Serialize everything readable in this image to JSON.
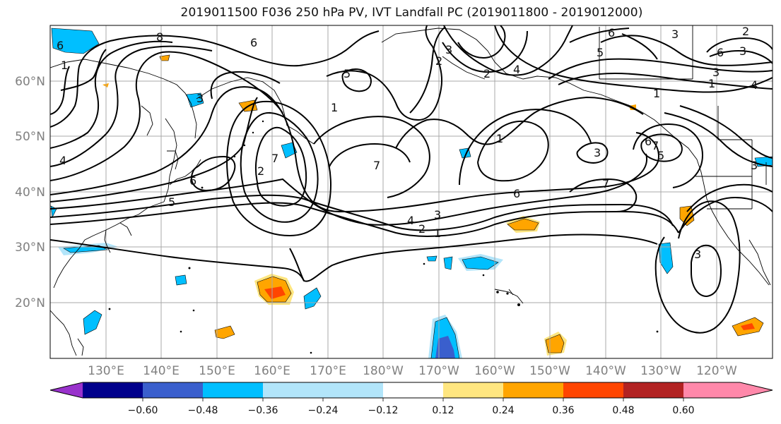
{
  "title": "2019011500 F036 250 hPa PV, IVT Landfall PC (2019011800 - 2019012000)",
  "lat_labels": [
    "60°N",
    "50°N",
    "40°N",
    "30°N",
    "20°N"
  ],
  "lon_labels": [
    "130°E",
    "140°E",
    "150°E",
    "160°E",
    "170°E",
    "180°W",
    "170°W",
    "160°W",
    "150°W",
    "140°W",
    "130°W",
    "120°W"
  ],
  "colorbar": {
    "colors": [
      "#9932cc",
      "#00008b",
      "#3a5fcd",
      "#00bfff",
      "#b2e5fa",
      "#ffffff",
      "#ffe680",
      "#ffa500",
      "#ff4500",
      "#b22222",
      "#ff88aa"
    ],
    "tick_labels": [
      "−0.60",
      "−0.48",
      "−0.36",
      "−0.24",
      "−0.12",
      "0.12",
      "0.24",
      "0.36",
      "0.48",
      "0.60"
    ]
  },
  "contour_labels": [
    "8",
    "6",
    "4",
    "1",
    "6",
    "5",
    "2",
    "7",
    "6",
    "3",
    "4",
    "5",
    "1",
    "3",
    "2",
    "2",
    "7",
    "1",
    "4",
    "3",
    "2",
    "1",
    "7",
    "6",
    "1",
    "6",
    "3",
    "7",
    "6",
    "5",
    "3",
    "3",
    "2",
    "3",
    "5",
    "3",
    "4",
    "1",
    "3",
    "6"
  ],
  "colors": {
    "positive_anomaly": "#ffa500",
    "negative_anomaly": "#00bfff",
    "contour": "#000000",
    "grid": "#a0a0a0"
  }
}
